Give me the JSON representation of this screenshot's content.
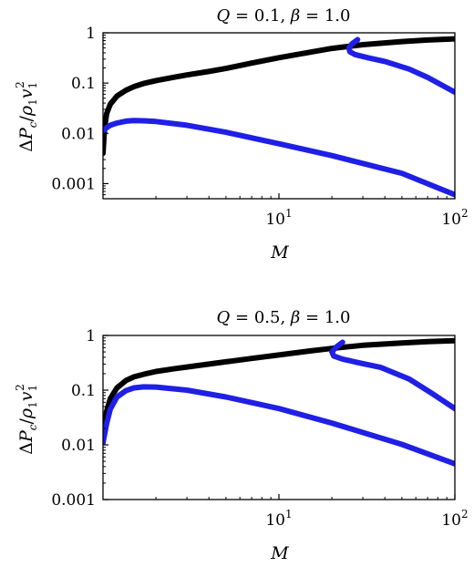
{
  "chart_data": [
    {
      "type": "line",
      "title": "Q = 0.1, β = 1.0",
      "title_parts": {
        "q_symbol": "Q",
        "q_value": " = 0.1, ",
        "beta_symbol": "β",
        "beta_value": " = 1.0"
      },
      "xlabel": "M",
      "ylabel": "ΔP_c/ρ_1 v_1^2",
      "ylabel_parts": {
        "delta": "Δ",
        "p": "P",
        "c": "c",
        "slash": "/",
        "rho": "ρ",
        "one_a": "1",
        "v": "v",
        "one_b": "1",
        "two": "2"
      },
      "x_scale": "log",
      "y_scale": "log",
      "xlim": [
        1,
        100
      ],
      "ylim": [
        0.0005,
        1
      ],
      "x_ticks": [
        {
          "value": 10,
          "base": "10",
          "exp": "1"
        },
        {
          "value": 100,
          "base": "10",
          "exp": "2"
        }
      ],
      "y_ticks": [
        {
          "value": 0.001,
          "label": "0.001"
        },
        {
          "value": 0.01,
          "label": "0.01"
        },
        {
          "value": 0.1,
          "label": "0.1"
        },
        {
          "value": 1,
          "label": "1"
        }
      ],
      "grid": false,
      "series": [
        {
          "color": "#000000",
          "x": [
            1.0,
            1.02,
            1.05,
            1.1,
            1.2,
            1.35,
            1.5,
            1.7,
            2,
            2.5,
            3,
            4,
            5,
            7,
            10,
            15,
            20,
            30,
            50,
            70,
            100
          ],
          "y": [
            0.004,
            0.013,
            0.025,
            0.038,
            0.055,
            0.072,
            0.085,
            0.098,
            0.112,
            0.13,
            0.145,
            0.17,
            0.195,
            0.25,
            0.32,
            0.41,
            0.49,
            0.58,
            0.67,
            0.72,
            0.76
          ]
        },
        {
          "color": "#1f1fe6",
          "x": [
            1.0,
            1.05,
            1.1,
            1.2,
            1.35,
            1.5,
            1.7,
            2,
            3,
            5,
            10,
            20,
            50,
            100
          ],
          "y": [
            0.011,
            0.013,
            0.0145,
            0.016,
            0.0175,
            0.018,
            0.0178,
            0.0172,
            0.0145,
            0.0105,
            0.0062,
            0.0036,
            0.0016,
            0.0006
          ]
        },
        {
          "color": "#1f1fe6",
          "x": [
            28,
            26,
            25,
            25.3,
            27,
            32,
            40,
            55,
            70,
            100
          ],
          "y": [
            0.73,
            0.6,
            0.5,
            0.42,
            0.37,
            0.32,
            0.27,
            0.19,
            0.13,
            0.066
          ]
        }
      ]
    },
    {
      "type": "line",
      "title": "Q = 0.5, β = 1.0",
      "title_parts": {
        "q_symbol": "Q",
        "q_value": " = 0.5, ",
        "beta_symbol": "β",
        "beta_value": " = 1.0"
      },
      "xlabel": "M",
      "ylabel": "ΔP_c/ρ_1 v_1^2",
      "ylabel_parts": {
        "delta": "Δ",
        "p": "P",
        "c": "c",
        "slash": "/",
        "rho": "ρ",
        "one_a": "1",
        "v": "v",
        "one_b": "1",
        "two": "2"
      },
      "x_scale": "log",
      "y_scale": "log",
      "xlim": [
        1,
        100
      ],
      "ylim": [
        0.001,
        1
      ],
      "x_ticks": [
        {
          "value": 10,
          "base": "10",
          "exp": "1"
        },
        {
          "value": 100,
          "base": "10",
          "exp": "2"
        }
      ],
      "y_ticks": [
        {
          "value": 0.001,
          "label": "0.001"
        },
        {
          "value": 0.01,
          "label": "0.01"
        },
        {
          "value": 0.1,
          "label": "0.1"
        },
        {
          "value": 1,
          "label": "1"
        }
      ],
      "grid": false,
      "series": [
        {
          "color": "#000000",
          "x": [
            1.0,
            1.02,
            1.05,
            1.1,
            1.2,
            1.35,
            1.5,
            1.7,
            2,
            2.5,
            3,
            4,
            5,
            7,
            10,
            15,
            20,
            30,
            50,
            70,
            100
          ],
          "y": [
            0.011,
            0.022,
            0.042,
            0.07,
            0.11,
            0.15,
            0.175,
            0.195,
            0.22,
            0.245,
            0.265,
            0.3,
            0.33,
            0.38,
            0.44,
            0.52,
            0.58,
            0.66,
            0.73,
            0.77,
            0.8
          ]
        },
        {
          "color": "#1f1fe6",
          "x": [
            1.0,
            1.05,
            1.1,
            1.2,
            1.35,
            1.5,
            1.7,
            2,
            3,
            5,
            10,
            20,
            50,
            100
          ],
          "y": [
            0.011,
            0.025,
            0.045,
            0.075,
            0.098,
            0.11,
            0.115,
            0.114,
            0.1,
            0.075,
            0.046,
            0.025,
            0.0102,
            0.0045
          ]
        },
        {
          "color": "#1f1fe6",
          "x": [
            23,
            21,
            20,
            20.5,
            23,
            28,
            38,
            55,
            75,
            100
          ],
          "y": [
            0.75,
            0.6,
            0.5,
            0.42,
            0.37,
            0.32,
            0.26,
            0.16,
            0.085,
            0.046
          ]
        }
      ]
    }
  ]
}
